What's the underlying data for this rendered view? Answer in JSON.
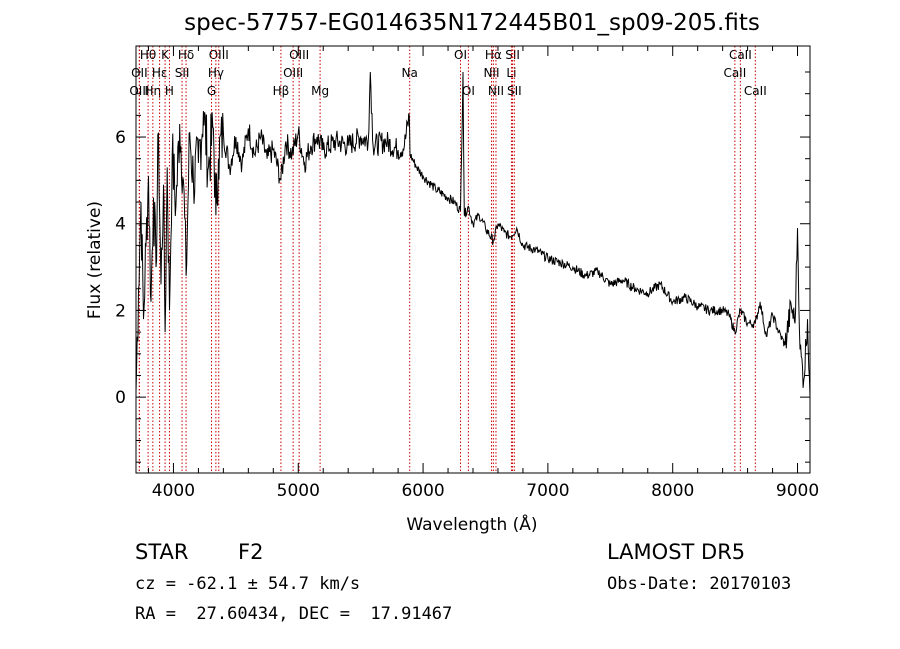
{
  "chart_data": {
    "type": "line",
    "title": "spec-57757-EG014635N172445B01_sp09-205.fits",
    "xlabel": "Wavelength (Å)",
    "ylabel": "Flux (relative)",
    "xlim": [
      3700,
      9100
    ],
    "ylim": [
      -1.75,
      8.1
    ],
    "xticks": [
      4000,
      5000,
      6000,
      7000,
      8000,
      9000
    ],
    "xticklabels": [
      "4000",
      "5000",
      "6000",
      "7000",
      "8000",
      "9000"
    ],
    "yticks": [
      0,
      2,
      4,
      6
    ],
    "yticklabels": [
      "0",
      "2",
      "4",
      "6"
    ],
    "grid": false,
    "series": [
      {
        "x": [
          3700,
          3720,
          3740,
          3760,
          3780,
          3800,
          3820,
          3840,
          3860,
          3880,
          3900,
          3920,
          3933,
          3950,
          3968,
          3990,
          4020,
          4050,
          4080,
          4101,
          4130,
          4160,
          4200,
          4240,
          4280,
          4320,
          4340,
          4360,
          4400,
          4450,
          4500,
          4550,
          4600,
          4650,
          4700,
          4750,
          4800,
          4861,
          4900,
          4950,
          5000,
          5050,
          5100,
          5150,
          5200,
          5300,
          5400,
          5500,
          5560,
          5577,
          5600,
          5700,
          5800,
          5850,
          5890,
          5895,
          5950,
          6000,
          6100,
          6200,
          6250,
          6300,
          6320,
          6330,
          6363,
          6400,
          6450,
          6500,
          6563,
          6600,
          6650,
          6700,
          6750,
          6800,
          6900,
          7000,
          7100,
          7200,
          7300,
          7400,
          7500,
          7600,
          7700,
          7800,
          7900,
          8000,
          8100,
          8200,
          8300,
          8400,
          8450,
          8498,
          8542,
          8600,
          8662,
          8700,
          8750,
          8800,
          8850,
          8900,
          8950,
          8980,
          9000,
          9020,
          9050,
          9080,
          9100
        ],
        "y": [
          0.1,
          2.5,
          4.5,
          1.8,
          3.5,
          5.1,
          2.2,
          4.6,
          3.0,
          6.1,
          2.6,
          4.9,
          1.5,
          5.3,
          2.0,
          5.6,
          4.4,
          6.3,
          5.0,
          2.8,
          6.1,
          5.0,
          5.4,
          6.6,
          5.3,
          6.2,
          4.2,
          5.5,
          6.1,
          5.3,
          6.0,
          5.4,
          6.2,
          5.6,
          6.0,
          5.5,
          5.7,
          5.0,
          5.9,
          5.6,
          6.1,
          5.4,
          5.8,
          6.0,
          5.7,
          5.9,
          5.8,
          6.0,
          5.9,
          7.5,
          5.8,
          5.9,
          5.7,
          5.8,
          6.5,
          5.6,
          5.3,
          5.1,
          4.8,
          4.6,
          4.5,
          4.3,
          7.5,
          4.2,
          4.4,
          4.0,
          4.2,
          3.9,
          3.6,
          4.0,
          3.8,
          3.7,
          3.9,
          3.5,
          3.4,
          3.2,
          3.1,
          3.0,
          2.8,
          2.9,
          2.6,
          2.7,
          2.5,
          2.4,
          2.6,
          2.2,
          2.3,
          2.1,
          2.0,
          2.0,
          1.9,
          1.5,
          2.0,
          1.7,
          1.7,
          2.2,
          1.4,
          1.9,
          1.5,
          1.2,
          2.1,
          1.7,
          3.9,
          1.1,
          0.4,
          1.8,
          0.0
        ]
      }
    ],
    "lines": [
      {
        "label": "Hθ",
        "x": 3797,
        "row": 0
      },
      {
        "label": "OII",
        "x": 3727,
        "row": 1
      },
      {
        "label": "OIII",
        "x": 3727,
        "row": 2
      },
      {
        "label": "Hη",
        "x": 3835,
        "row": 2
      },
      {
        "label": "K",
        "x": 3933,
        "row": 0
      },
      {
        "label": "Hε",
        "x": 3889,
        "row": 1
      },
      {
        "label": "H",
        "x": 3968,
        "row": 2
      },
      {
        "label": "SII",
        "x": 4069,
        "row": 1
      },
      {
        "label": "Hδ",
        "x": 4101,
        "row": 0
      },
      {
        "label": "OIII",
        "x": 4363,
        "row": 0
      },
      {
        "label": "Hγ",
        "x": 4340,
        "row": 1
      },
      {
        "label": "G",
        "x": 4305,
        "row": 2
      },
      {
        "label": "Hβ",
        "x": 4861,
        "row": 2
      },
      {
        "label": "OIII",
        "x": 5007,
        "row": 0
      },
      {
        "label": "OIII",
        "x": 4959,
        "row": 1
      },
      {
        "label": "Mg",
        "x": 5175,
        "row": 2
      },
      {
        "label": "Na",
        "x": 5893,
        "row": 1
      },
      {
        "label": "OI",
        "x": 6300,
        "row": 0
      },
      {
        "label": "OI",
        "x": 6363,
        "row": 2
      },
      {
        "label": "Hα",
        "x": 6563,
        "row": 0
      },
      {
        "label": "SII",
        "x": 6717,
        "row": 0
      },
      {
        "label": "NII",
        "x": 6548,
        "row": 1
      },
      {
        "label": "Li",
        "x": 6708,
        "row": 1
      },
      {
        "label": "NII",
        "x": 6584,
        "row": 2
      },
      {
        "label": "SII",
        "x": 6731,
        "row": 2
      },
      {
        "label": "CaII",
        "x": 8542,
        "row": 0
      },
      {
        "label": "CaII",
        "x": 8498,
        "row": 1
      },
      {
        "label": "CaII",
        "x": 8662,
        "row": 2
      }
    ]
  },
  "info": {
    "class": "STAR",
    "subclass": "F2",
    "survey": "LAMOST DR5",
    "cz": "cz = -62.1 ± 54.7 km/s",
    "obs_date": "Obs-Date: 20170103",
    "coords": "RA =  27.60434, DEC =  17.91467"
  },
  "colors": {
    "spectrum": "#000000",
    "lines": "#cc0000",
    "axes": "#000000"
  }
}
